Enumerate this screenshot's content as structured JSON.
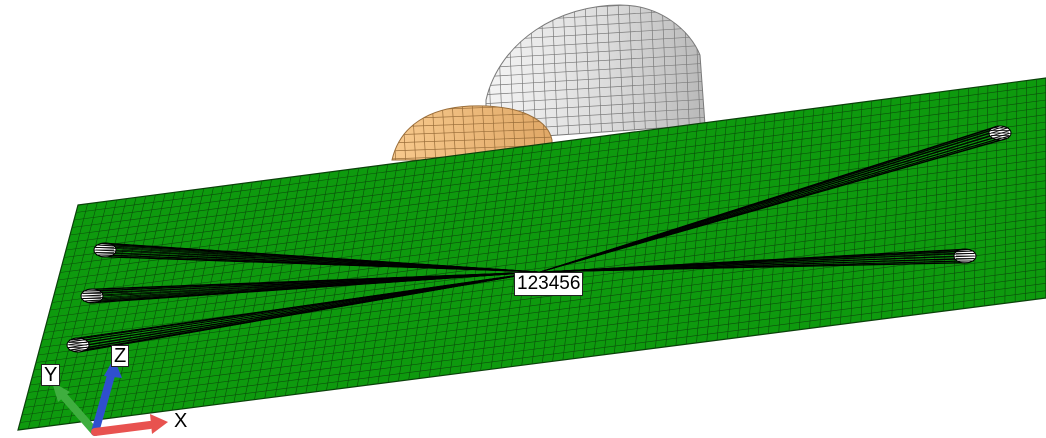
{
  "node_label": "123456",
  "triad": {
    "x_label": "X",
    "y_label": "Y",
    "z_label": "Z"
  },
  "colors": {
    "plate": "#0e9a0e",
    "plate_edge": "#0a3d0a",
    "mesh_line": "#0b4d0b",
    "cylinder": "#e4e4e4",
    "cylinder_edge": "#7a7a7a",
    "disk": "#f1bd7d",
    "disk_edge": "#9a6e3a",
    "spokes": "#000000",
    "x_axis": "#e8524f",
    "y_axis": "#3fae3f",
    "z_axis": "#2f4fcf"
  }
}
